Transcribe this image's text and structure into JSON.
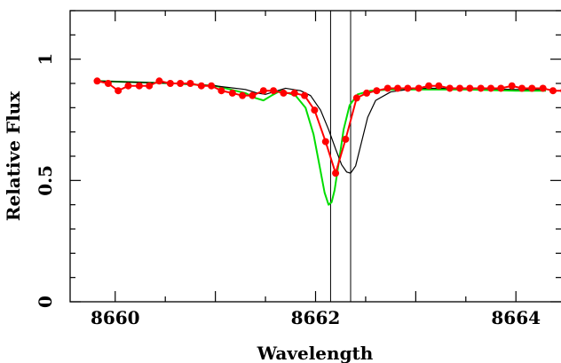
{
  "chart_data": {
    "type": "line",
    "title": "",
    "xlabel": "Wavelength",
    "ylabel": "Relative Flux",
    "xlim": [
      8659.55,
      8664.45
    ],
    "ylim": [
      0,
      1.2
    ],
    "x_ticks": [
      {
        "value": 8660,
        "label": "8660"
      },
      {
        "value": 8662,
        "label": "8662"
      },
      {
        "value": 8664,
        "label": "8664"
      }
    ],
    "y_ticks": [
      {
        "value": 0,
        "label": "0"
      },
      {
        "value": 0.5,
        "label": "0.5"
      },
      {
        "value": 1,
        "label": "1"
      }
    ],
    "grid": false,
    "vertical_lines": [
      8662.15,
      8662.35
    ],
    "colors": {
      "observed": "#ff0000",
      "model_black": "#000000",
      "model_green": "#00dd00",
      "axis": "#000000"
    },
    "series": [
      {
        "style": "points+line",
        "color": "#ff0000",
        "x": [
          8659.82,
          8659.93,
          8660.03,
          8660.13,
          8660.24,
          8660.34,
          8660.44,
          8660.55,
          8660.65,
          8660.75,
          8660.86,
          8660.96,
          8661.06,
          8661.17,
          8661.27,
          8661.37,
          8661.48,
          8661.58,
          8661.68,
          8661.79,
          8661.89,
          8661.99,
          8662.1,
          8662.2,
          8662.3,
          8662.41,
          8662.51,
          8662.61,
          8662.72,
          8662.82,
          8662.92,
          8663.03,
          8663.13,
          8663.23,
          8663.34,
          8663.44,
          8663.54,
          8663.65,
          8663.75,
          8663.85,
          8663.96,
          8664.06,
          8664.16,
          8664.27,
          8664.37,
          8664.48
        ],
        "y": [
          0.91,
          0.9,
          0.87,
          0.89,
          0.89,
          0.89,
          0.91,
          0.9,
          0.9,
          0.9,
          0.89,
          0.89,
          0.87,
          0.86,
          0.85,
          0.85,
          0.87,
          0.87,
          0.86,
          0.86,
          0.85,
          0.79,
          0.66,
          0.53,
          0.67,
          0.84,
          0.86,
          0.87,
          0.88,
          0.88,
          0.88,
          0.88,
          0.89,
          0.89,
          0.88,
          0.88,
          0.88,
          0.88,
          0.88,
          0.88,
          0.89,
          0.88,
          0.88,
          0.88,
          0.87,
          0.87
        ]
      },
      {
        "style": "line",
        "color": "#000000",
        "x": [
          8659.82,
          8660.2,
          8660.6,
          8661.0,
          8661.3,
          8661.42,
          8661.5,
          8661.58,
          8661.7,
          8661.85,
          8661.95,
          8662.05,
          8662.13,
          8662.2,
          8662.26,
          8662.31,
          8662.35,
          8662.4,
          8662.46,
          8662.52,
          8662.6,
          8662.75,
          8663.0,
          8663.5,
          8664.0,
          8664.3
        ],
        "y": [
          0.91,
          0.905,
          0.9,
          0.89,
          0.875,
          0.86,
          0.855,
          0.865,
          0.88,
          0.87,
          0.85,
          0.79,
          0.71,
          0.63,
          0.565,
          0.535,
          0.53,
          0.56,
          0.66,
          0.76,
          0.83,
          0.865,
          0.88,
          0.88,
          0.875,
          0.875
        ]
      },
      {
        "style": "line",
        "color": "#00dd00",
        "x": [
          8659.82,
          8660.2,
          8660.6,
          8661.0,
          8661.3,
          8661.4,
          8661.48,
          8661.56,
          8661.65,
          8661.8,
          8661.9,
          8661.98,
          8662.04,
          8662.09,
          8662.13,
          8662.16,
          8662.19,
          8662.23,
          8662.28,
          8662.34,
          8662.42,
          8662.55,
          8662.75,
          8663.0,
          8663.5,
          8664.0,
          8664.3
        ],
        "y": [
          0.91,
          0.905,
          0.9,
          0.89,
          0.86,
          0.84,
          0.83,
          0.85,
          0.87,
          0.85,
          0.8,
          0.69,
          0.56,
          0.45,
          0.4,
          0.41,
          0.46,
          0.57,
          0.71,
          0.81,
          0.855,
          0.87,
          0.875,
          0.875,
          0.875,
          0.87,
          0.87
        ]
      }
    ]
  }
}
